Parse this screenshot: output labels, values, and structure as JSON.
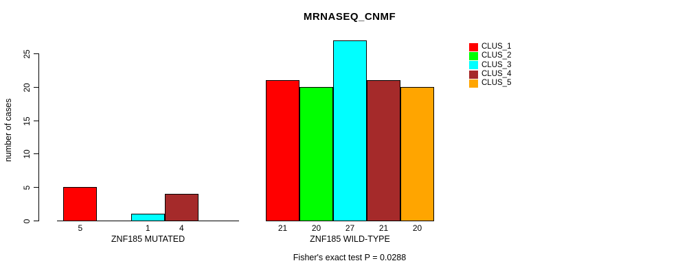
{
  "title": "MRNASEQ_CNMF",
  "chart_data": {
    "type": "bar",
    "title": "MRNASEQ_CNMF",
    "ylabel": "number of cases",
    "ylim": [
      0,
      27.5
    ],
    "yticks": [
      0,
      5,
      10,
      15,
      20,
      25
    ],
    "grid": false,
    "categories": [
      "CLUS_1",
      "CLUS_2",
      "CLUS_3",
      "CLUS_4",
      "CLUS_5"
    ],
    "colors": [
      "#ff0000",
      "#00ff00",
      "#00ffff",
      "#a52a2a",
      "#ffa500"
    ],
    "groups": [
      {
        "label": "ZNF185 MUTATED",
        "values": [
          5,
          0,
          1,
          4,
          0
        ]
      },
      {
        "label": "ZNF185 WILD-TYPE",
        "values": [
          21,
          20,
          27,
          21,
          20
        ]
      }
    ],
    "bar_value_labels_shown": [
      "5",
      "1",
      "4",
      "21",
      "20",
      "27",
      "21",
      "20"
    ],
    "annotation": "Fisher's exact test P = 0.0288",
    "legend": {
      "position": "right",
      "entries": [
        {
          "label": "CLUS_1",
          "color": "#ff0000"
        },
        {
          "label": "CLUS_2",
          "color": "#00ff00"
        },
        {
          "label": "CLUS_3",
          "color": "#00ffff"
        },
        {
          "label": "CLUS_4",
          "color": "#a52a2a"
        },
        {
          "label": "CLUS_5",
          "color": "#ffa500"
        }
      ]
    }
  }
}
